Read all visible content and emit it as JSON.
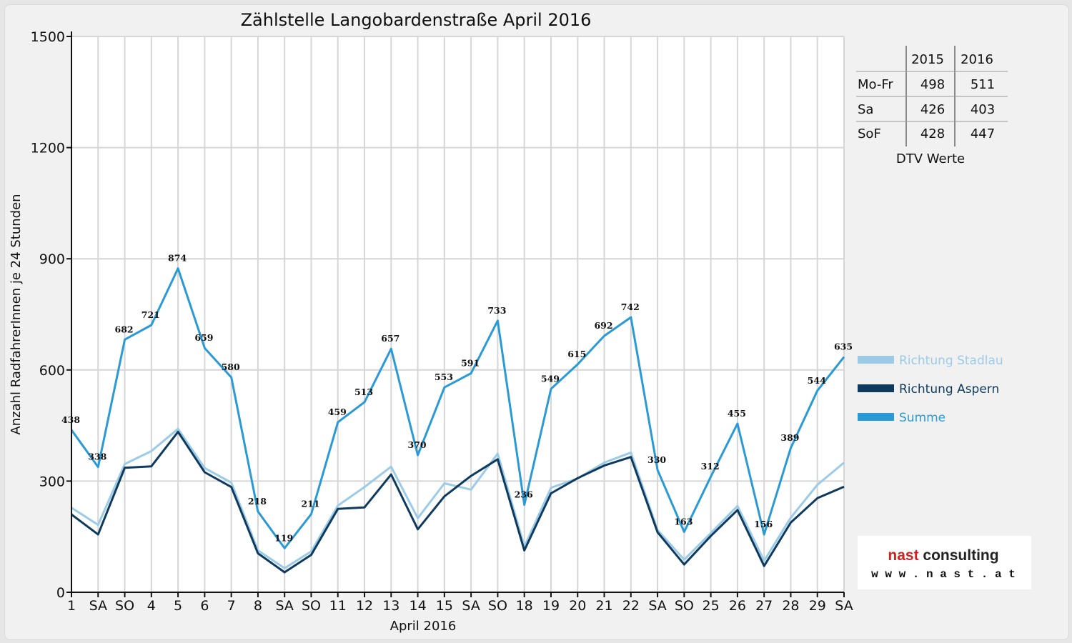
{
  "chart_data": {
    "type": "line",
    "title": "Zählstelle Langobardenstraße April 2016",
    "xlabel": "April 2016",
    "ylabel": "Anzahl RadfahrerInnen je 24 Stunden",
    "ylim": [
      0,
      1500
    ],
    "yticks": [
      0,
      300,
      600,
      900,
      1200,
      1500
    ],
    "grid": true,
    "legend_position": "right",
    "categories": [
      "1",
      "SA",
      "SO",
      "4",
      "5",
      "6",
      "7",
      "8",
      "SA",
      "SO",
      "11",
      "12",
      "13",
      "14",
      "15",
      "SA",
      "SO",
      "18",
      "19",
      "20",
      "21",
      "22",
      "SA",
      "SO",
      "25",
      "26",
      "27",
      "28",
      "29",
      "SA"
    ],
    "weekend_color": "#e00000",
    "series": [
      {
        "name": "Richtung Stadlau",
        "color": "#9ccbe8",
        "values": [
          228,
          182,
          346,
          381,
          441,
          335,
          296,
          113,
          65,
          110,
          234,
          284,
          339,
          200,
          294,
          277,
          374,
          123,
          282,
          307,
          350,
          377,
          168,
          88,
          160,
          233,
          85,
          201,
          290,
          350
        ]
      },
      {
        "name": "Richtung Aspern",
        "color": "#0d3a5e",
        "values": [
          210,
          156,
          336,
          340,
          433,
          324,
          284,
          105,
          54,
          101,
          225,
          229,
          318,
          170,
          259,
          314,
          359,
          113,
          267,
          308,
          342,
          365,
          162,
          75,
          152,
          222,
          71,
          188,
          254,
          285
        ]
      },
      {
        "name": "Summe",
        "color": "#2a9ad6",
        "values": [
          438,
          338,
          682,
          721,
          874,
          659,
          580,
          218,
          119,
          211,
          459,
          513,
          657,
          370,
          553,
          591,
          733,
          236,
          549,
          615,
          692,
          742,
          330,
          163,
          312,
          455,
          156,
          389,
          544,
          635
        ],
        "labels": true
      }
    ]
  },
  "dtv_table": {
    "headers": [
      "",
      "2015",
      "2016"
    ],
    "rows": [
      [
        "Mo-Fr",
        "498",
        "511"
      ],
      [
        "Sa",
        "426",
        "403"
      ],
      [
        "SoF",
        "428",
        "447"
      ]
    ],
    "caption": "DTV Werte"
  },
  "logo": {
    "name": "nast consulting",
    "url": "w w w . n a s t . a t",
    "color_nast": "#d42020",
    "color_consulting": "#222222"
  }
}
